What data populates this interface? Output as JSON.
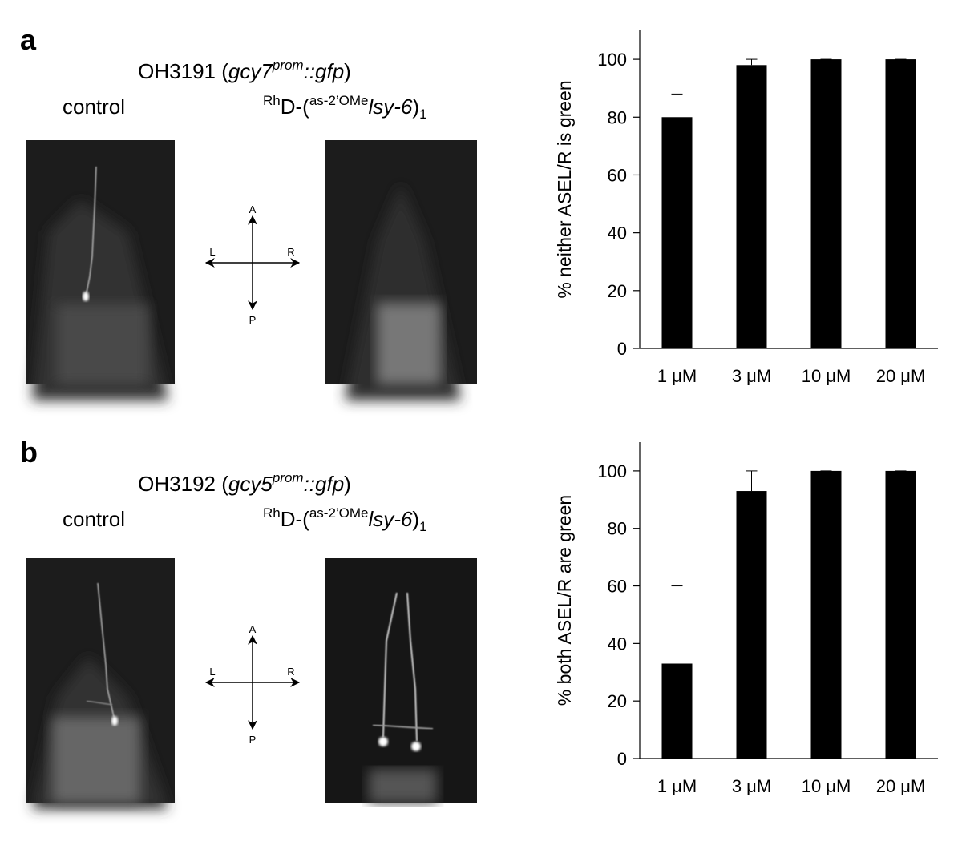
{
  "panels": [
    {
      "label": "a",
      "strain": [
        "OH3191 (",
        "gcy7",
        "prom",
        "::gfp",
        ")"
      ],
      "control": "control",
      "treatment": [
        "Rh",
        "D-(",
        "as-2’OMe",
        "lsy-6",
        ")",
        "1"
      ],
      "compass": [
        "A",
        "L",
        "R",
        "P"
      ]
    },
    {
      "label": "b",
      "strain": [
        "OH3192 (",
        "gcy5",
        "prom",
        "::gfp",
        ")"
      ],
      "control": "control",
      "treatment": [
        "Rh",
        "D-(",
        "as-2’OMe",
        "lsy-6",
        ")",
        "1"
      ],
      "compass": [
        "A",
        "L",
        "R",
        "P"
      ]
    }
  ],
  "chart_data": [
    {
      "type": "bar",
      "ylabel": "% neither ASEL/R is green",
      "categories": [
        "1 μM",
        "3 μM",
        "10 μM",
        "20 μM"
      ],
      "values": [
        80,
        98,
        100,
        100
      ],
      "errors": [
        8,
        2,
        0,
        0
      ],
      "color": "#000000",
      "ylim": [
        0,
        110
      ],
      "yticks": [
        0,
        20,
        40,
        60,
        80,
        100
      ],
      "grid": false
    },
    {
      "type": "bar",
      "ylabel": "% both ASEL/R are green",
      "categories": [
        "1 μM",
        "3 μM",
        "10 μM",
        "20 μM"
      ],
      "values": [
        33,
        93,
        100,
        100
      ],
      "errors": [
        27,
        7,
        0,
        0
      ],
      "color": "#000000",
      "ylim": [
        0,
        110
      ],
      "yticks": [
        0,
        20,
        40,
        60,
        80,
        100
      ],
      "grid": false
    }
  ]
}
